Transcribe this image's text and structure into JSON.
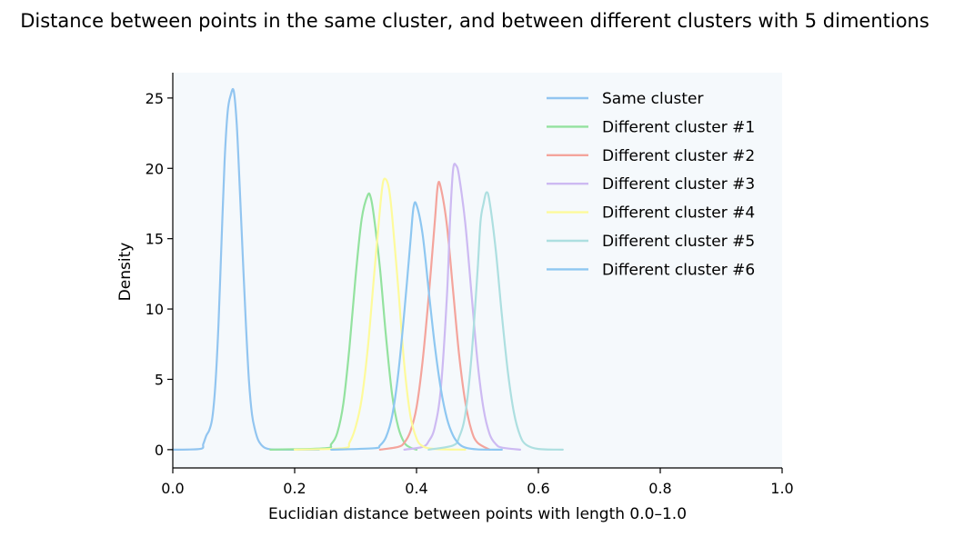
{
  "chart_data": {
    "type": "line",
    "title": "Distance between points in the same cluster, and between different clusters with 5 dimentions",
    "xlabel": "Euclidian distance between points with length 0.0–1.0",
    "ylabel": "Density",
    "xlim": [
      0.0,
      1.0
    ],
    "ylim": [
      -1.3,
      26.8
    ],
    "xticks": [
      0.0,
      0.2,
      0.4,
      0.6,
      0.8,
      1.0
    ],
    "xtick_labels": [
      "0.0",
      "0.2",
      "0.4",
      "0.6",
      "0.8",
      "1.0"
    ],
    "yticks": [
      0,
      5,
      10,
      15,
      20,
      25
    ],
    "ytick_labels": [
      "0",
      "5",
      "10",
      "15",
      "20",
      "25"
    ],
    "grid": false,
    "legend_position": "top-right",
    "plot_background": "#f5f9fc",
    "series": [
      {
        "name": "Same cluster",
        "color": "#92c5f0",
        "x": [
          0.0,
          0.045,
          0.05,
          0.055,
          0.06,
          0.065,
          0.07,
          0.075,
          0.08,
          0.085,
          0.09,
          0.095,
          0.1,
          0.105,
          0.11,
          0.115,
          0.12,
          0.125,
          0.13,
          0.135,
          0.14,
          0.145,
          0.15,
          0.155,
          0.16,
          0.17,
          0.2,
          0.24
        ],
        "y": [
          0,
          0.05,
          0.4,
          1.0,
          1.4,
          2.3,
          4.7,
          8.9,
          14.8,
          20.5,
          24.0,
          25.2,
          25.5,
          23.1,
          18.5,
          13.6,
          8.9,
          4.9,
          2.5,
          1.4,
          0.7,
          0.35,
          0.16,
          0.07,
          0.03,
          0.01,
          0.0,
          0.0
        ]
      },
      {
        "name": "Different cluster #1",
        "color": "#93e29f",
        "x": [
          0.16,
          0.25,
          0.26,
          0.27,
          0.28,
          0.29,
          0.3,
          0.31,
          0.32,
          0.325,
          0.33,
          0.34,
          0.35,
          0.36,
          0.37,
          0.38,
          0.39,
          0.4
        ],
        "y": [
          0,
          0.1,
          0.4,
          1.2,
          3.3,
          7.3,
          12.3,
          16.4,
          18.1,
          17.9,
          16.6,
          12.9,
          8.0,
          3.9,
          1.6,
          0.5,
          0.15,
          0.0
        ]
      },
      {
        "name": "Different cluster #2",
        "color": "#f4a49c",
        "x": [
          0.34,
          0.37,
          0.38,
          0.39,
          0.4,
          0.41,
          0.42,
          0.43,
          0.435,
          0.44,
          0.45,
          0.46,
          0.47,
          0.48,
          0.49,
          0.5,
          0.52
        ],
        "y": [
          0,
          0.2,
          0.5,
          1.3,
          3.0,
          6.3,
          10.9,
          16.2,
          18.8,
          18.6,
          15.9,
          11.3,
          6.7,
          3.4,
          1.4,
          0.5,
          0.0
        ]
      },
      {
        "name": "Different cluster #3",
        "color": "#cdbaf2",
        "x": [
          0.38,
          0.41,
          0.42,
          0.43,
          0.44,
          0.45,
          0.455,
          0.46,
          0.465,
          0.47,
          0.48,
          0.49,
          0.5,
          0.51,
          0.52,
          0.53,
          0.54,
          0.57
        ],
        "y": [
          0,
          0.2,
          0.6,
          1.6,
          4.4,
          11.0,
          16.3,
          19.9,
          20.2,
          19.4,
          16.1,
          11.2,
          6.3,
          2.9,
          1.1,
          0.4,
          0.15,
          0.0
        ]
      },
      {
        "name": "Different cluster #4",
        "color": "#fdfa9b",
        "x": [
          0.2,
          0.28,
          0.29,
          0.3,
          0.31,
          0.32,
          0.33,
          0.34,
          0.345,
          0.35,
          0.355,
          0.36,
          0.37,
          0.38,
          0.39,
          0.4,
          0.41,
          0.43,
          0.48
        ],
        "y": [
          0,
          0.1,
          0.5,
          1.6,
          3.6,
          7.2,
          12.2,
          17.1,
          19.0,
          19.2,
          18.5,
          16.6,
          11.5,
          6.0,
          2.4,
          0.8,
          0.25,
          0.05,
          0.0
        ]
      },
      {
        "name": "Different cluster #5",
        "color": "#addfe0",
        "x": [
          0.42,
          0.46,
          0.47,
          0.48,
          0.49,
          0.5,
          0.505,
          0.51,
          0.515,
          0.52,
          0.53,
          0.54,
          0.55,
          0.56,
          0.57,
          0.58,
          0.6,
          0.64
        ],
        "y": [
          0,
          0.3,
          0.9,
          2.5,
          6.5,
          12.6,
          16.2,
          17.5,
          18.3,
          17.6,
          14.2,
          9.6,
          5.5,
          2.6,
          1.0,
          0.35,
          0.05,
          0.0
        ]
      },
      {
        "name": "Different cluster #6",
        "color": "#8ec7f1",
        "x": [
          0.26,
          0.33,
          0.34,
          0.35,
          0.36,
          0.37,
          0.38,
          0.39,
          0.395,
          0.4,
          0.41,
          0.42,
          0.43,
          0.44,
          0.45,
          0.46,
          0.47,
          0.48,
          0.5,
          0.54
        ],
        "y": [
          0,
          0.1,
          0.3,
          0.9,
          2.4,
          5.4,
          9.8,
          14.8,
          17.2,
          17.4,
          15.3,
          11.3,
          7.4,
          4.3,
          2.2,
          1.0,
          0.4,
          0.15,
          0.02,
          0.0
        ]
      }
    ]
  }
}
